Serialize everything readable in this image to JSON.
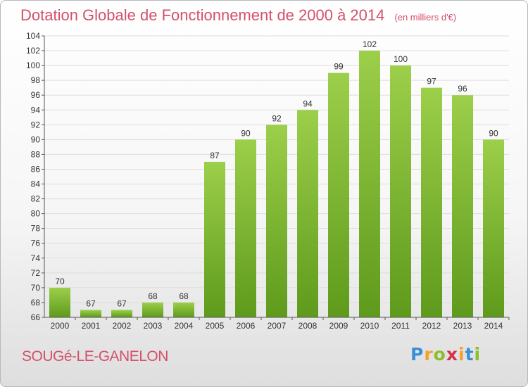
{
  "chart_data": {
    "type": "bar",
    "title": "Dotation Globale de Fonctionnement de 2000 à 2014",
    "subtitle": "(en milliers d'€)",
    "categories": [
      "2000",
      "2001",
      "2002",
      "2003",
      "2004",
      "2005",
      "2006",
      "2007",
      "2008",
      "2009",
      "2010",
      "2011",
      "2012",
      "2013",
      "2014"
    ],
    "values": [
      70,
      67,
      67,
      68,
      68,
      87,
      90,
      92,
      94,
      99,
      102,
      100,
      97,
      96,
      90
    ],
    "ylim": [
      66,
      104
    ],
    "yticks": [
      66,
      68,
      70,
      72,
      74,
      76,
      78,
      80,
      82,
      84,
      86,
      88,
      90,
      92,
      94,
      96,
      98,
      100,
      102,
      104
    ],
    "grid": true,
    "bar_color_top": "#9ccf4a",
    "bar_color_bottom": "#5e9a1c"
  },
  "location": "SOUGé-LE-GANELON",
  "logo": {
    "letters": [
      "P",
      "r",
      "o",
      "x",
      "i",
      "t",
      "i"
    ]
  },
  "colors": {
    "title": "#d4506a",
    "grid": "#dddddd",
    "axis": "#555555"
  }
}
